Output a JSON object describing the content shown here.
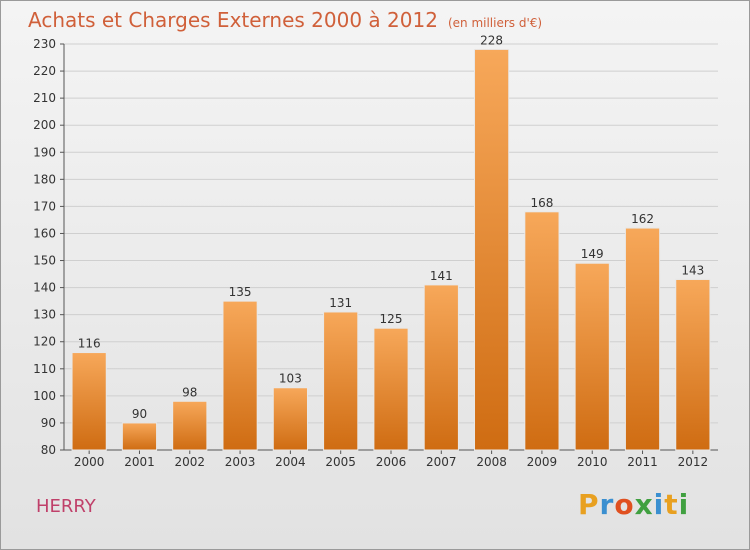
{
  "header": {
    "title": "Achats et Charges Externes 2000 à 2012",
    "subtitle": "(en milliers d'€)"
  },
  "footer": {
    "location": "HERRY",
    "logo_text": "Proxiti"
  },
  "colors": {
    "bar_top": "#f7a85a",
    "bar_bottom": "#cf6c12",
    "title": "#d0603a",
    "grid": "#cfcfcf"
  },
  "chart_data": {
    "type": "bar",
    "title": "Achats et Charges Externes 2000 à 2012",
    "subtitle": "(en milliers d'€)",
    "categories": [
      "2000",
      "2001",
      "2002",
      "2003",
      "2004",
      "2005",
      "2006",
      "2007",
      "2008",
      "2009",
      "2010",
      "2011",
      "2012"
    ],
    "values": [
      116,
      90,
      98,
      135,
      103,
      131,
      125,
      141,
      228,
      168,
      149,
      162,
      143
    ],
    "ylim": [
      80,
      230
    ],
    "yticks": [
      80,
      90,
      100,
      110,
      120,
      130,
      140,
      150,
      160,
      170,
      180,
      190,
      200,
      210,
      220,
      230
    ],
    "grid": true,
    "xlabel": "",
    "ylabel": ""
  }
}
